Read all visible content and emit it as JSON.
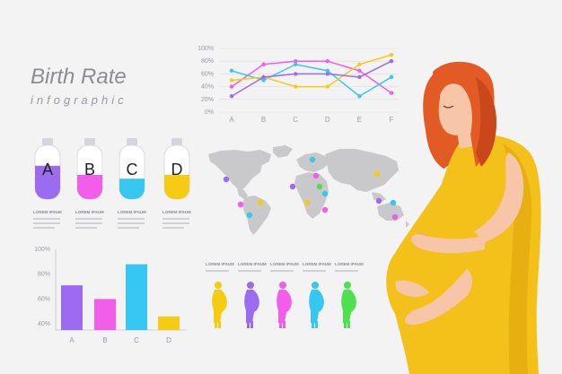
{
  "header": {
    "title": "Birth Rate",
    "subtitle": "infographic"
  },
  "colors": {
    "purple": "#9b6cf0",
    "pink": "#f25ee9",
    "cyan": "#36c8f2",
    "yellow": "#f6cc12",
    "green": "#4ee04e",
    "map": "#c9c9cc",
    "dress": "#f4c11b",
    "hair": "#e25b24",
    "skin": "#f7c5a8"
  },
  "tubes": [
    {
      "letter": "A",
      "caption": "LOREM IPSUM",
      "fill_fraction": 0.62,
      "color": "#9b6cf0"
    },
    {
      "letter": "B",
      "caption": "LOREM IPSUM",
      "fill_fraction": 0.45,
      "color": "#f25ee9"
    },
    {
      "letter": "C",
      "caption": "LOREM IPSUM",
      "fill_fraction": 0.38,
      "color": "#36c8f2"
    },
    {
      "letter": "D",
      "caption": "LOREM IPSUM",
      "fill_fraction": 0.45,
      "color": "#f6cc12"
    }
  ],
  "line_chart": {
    "type": "line",
    "categories": [
      "A",
      "B",
      "C",
      "D",
      "E",
      "F"
    ],
    "y_ticks": [
      "0%",
      "20%",
      "40%",
      "60%",
      "80%",
      "100%"
    ],
    "ylim": [
      0,
      100
    ],
    "series": [
      {
        "color": "#f25ee9",
        "values": [
          40,
          75,
          80,
          80,
          65,
          30
        ]
      },
      {
        "color": "#36c8f2",
        "values": [
          65,
          50,
          75,
          65,
          25,
          55
        ]
      },
      {
        "color": "#f6cc12",
        "values": [
          50,
          55,
          40,
          40,
          75,
          90
        ]
      },
      {
        "color": "#9b6cf0",
        "values": [
          25,
          55,
          60,
          60,
          55,
          80
        ]
      }
    ]
  },
  "bar_chart": {
    "type": "bar",
    "categories": [
      "A",
      "B",
      "C",
      "D"
    ],
    "y_ticks": [
      "40%",
      "60%",
      "80%",
      "100%"
    ],
    "ylim": [
      35,
      100
    ],
    "values": [
      71,
      60,
      88,
      46
    ],
    "colors": [
      "#9b6cf0",
      "#f25ee9",
      "#36c8f2",
      "#f6cc12"
    ]
  },
  "map_dots": [
    {
      "color": "#36c8f2"
    },
    {
      "color": "#9b6cf0"
    },
    {
      "color": "#f25ee9"
    },
    {
      "color": "#f6cc12"
    },
    {
      "color": "#36c8f2"
    },
    {
      "color": "#f25ee9"
    },
    {
      "color": "#9b6cf0"
    },
    {
      "color": "#f6cc12"
    },
    {
      "color": "#4ee04e"
    },
    {
      "color": "#36c8f2"
    },
    {
      "color": "#f25ee9"
    },
    {
      "color": "#f6cc12"
    },
    {
      "color": "#9b6cf0"
    },
    {
      "color": "#36c8f2"
    },
    {
      "color": "#f25ee9"
    }
  ],
  "figures": [
    {
      "caption": "LOREM IPSUM",
      "color": "#f6cc12"
    },
    {
      "caption": "LOREM IPSUM",
      "color": "#9b6cf0"
    },
    {
      "caption": "LOREM IPSUM",
      "color": "#f25ee9"
    },
    {
      "caption": "LOREM IPSUM",
      "color": "#36c8f2"
    },
    {
      "caption": "LOREM IPSUM",
      "color": "#4ee04e"
    }
  ]
}
